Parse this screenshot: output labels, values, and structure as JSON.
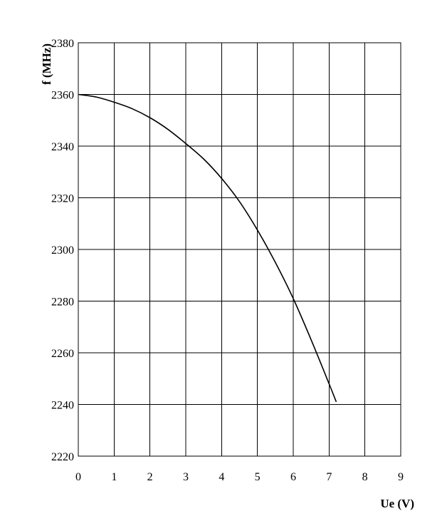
{
  "chart_data": {
    "type": "line",
    "xlabel": "Ue (V)",
    "ylabel": "f (MHz)",
    "xlim": [
      0,
      9
    ],
    "ylim": [
      2220,
      2380
    ],
    "x_ticks": [
      "0",
      "1",
      "2",
      "3",
      "4",
      "5",
      "6",
      "7",
      "8",
      "9"
    ],
    "y_ticks": [
      "2220",
      "2240",
      "2260",
      "2280",
      "2300",
      "2320",
      "2340",
      "2360",
      "2380"
    ],
    "grid": true,
    "legend": "none",
    "series": [
      {
        "x": [
          0,
          0.5,
          1,
          1.5,
          2,
          2.5,
          3,
          3.5,
          4,
          4.5,
          5,
          5.5,
          6,
          6.5,
          7,
          7.2
        ],
        "y": [
          2360,
          2359,
          2357,
          2354.5,
          2351,
          2346.5,
          2341,
          2335,
          2327.5,
          2318.5,
          2307.5,
          2295,
          2281,
          2265,
          2248,
          2241
        ]
      }
    ],
    "colors": {
      "line": "#000000",
      "grid": "#000000",
      "background": "#ffffff"
    }
  }
}
